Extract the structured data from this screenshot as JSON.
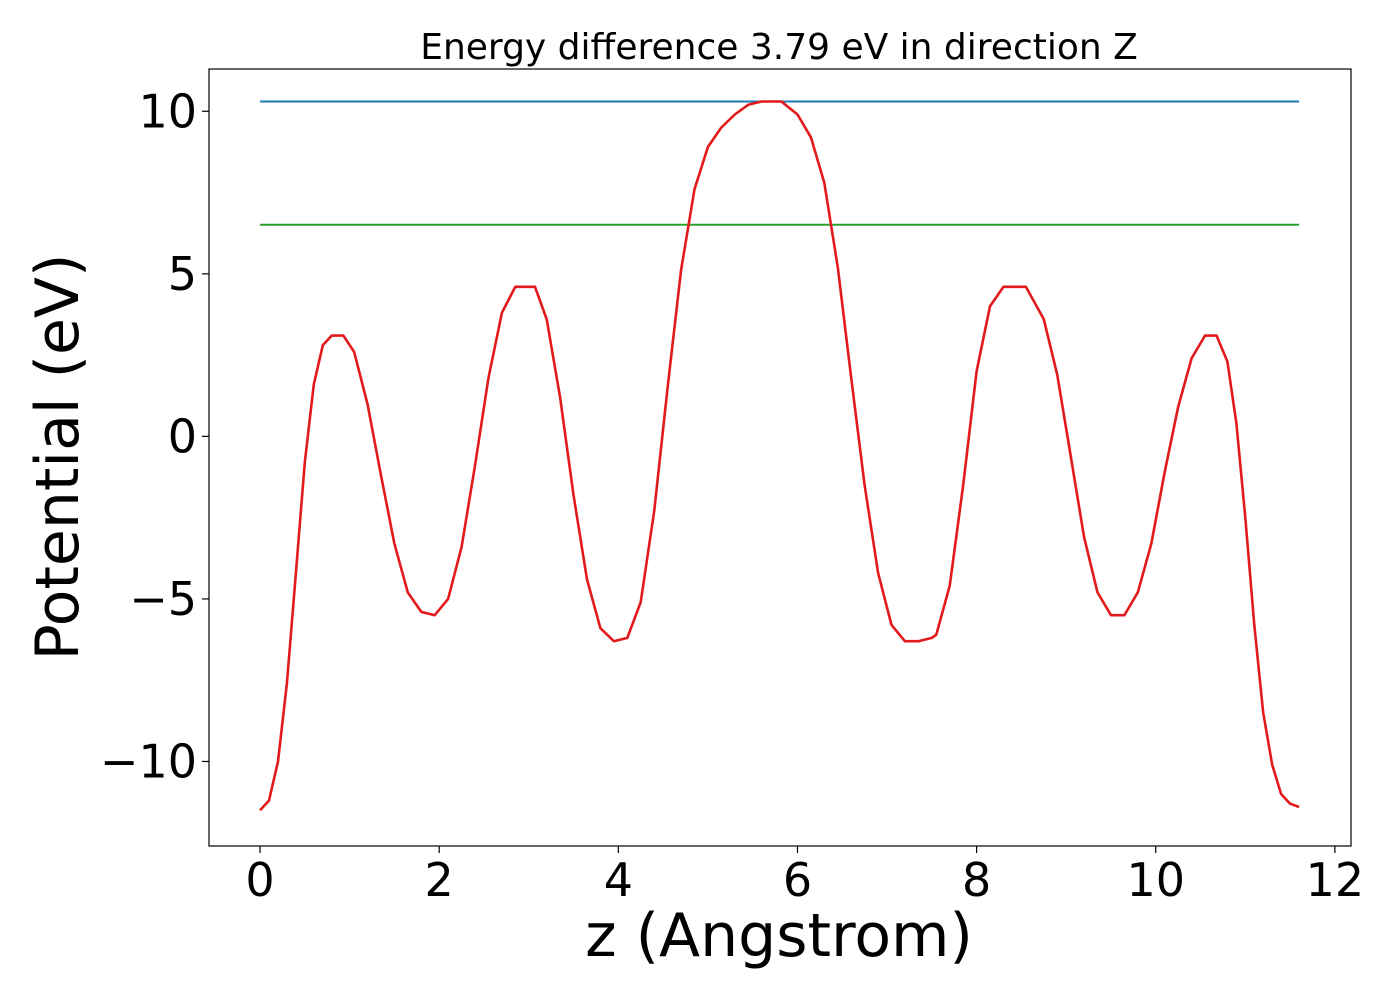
{
  "chart_data": {
    "type": "line",
    "title": "Energy difference 3.79 eV in direction Z",
    "xlabel": "z (Angstrom)",
    "ylabel": "Potential (eV)",
    "xlim": [
      -0.57,
      12.18
    ],
    "ylim": [
      -12.6,
      11.3
    ],
    "xticks": [
      0,
      2,
      4,
      6,
      8,
      10,
      12
    ],
    "xtick_labels": [
      "0",
      "2",
      "4",
      "6",
      "8",
      "10",
      "12"
    ],
    "yticks": [
      -10,
      -5,
      0,
      5,
      10
    ],
    "ytick_labels": [
      "−10",
      "−5",
      "0",
      "5",
      "10"
    ],
    "grid": false,
    "series": [
      {
        "color": "#1f77b4",
        "x": [
          0,
          11.6
        ],
        "y": [
          10.3,
          10.3
        ]
      },
      {
        "color": "#2ca02c",
        "x": [
          0,
          11.6
        ],
        "y": [
          6.51,
          6.51
        ]
      },
      {
        "color": "#e31a1c",
        "x": [
          0,
          0.1,
          0.2,
          0.3,
          0.4,
          0.5,
          0.6,
          0.7,
          0.8,
          0.93,
          1.05,
          1.2,
          1.35,
          1.5,
          1.65,
          1.8,
          1.95,
          2.1,
          2.25,
          2.4,
          2.55,
          2.7,
          2.85,
          3.07,
          3.2,
          3.35,
          3.5,
          3.65,
          3.8,
          3.95,
          4.1,
          4.25,
          4.4,
          4.55,
          4.7,
          4.85,
          5.0,
          5.15,
          5.3,
          5.45,
          5.6,
          5.82,
          6.0,
          6.15,
          6.3,
          6.45,
          6.6,
          6.75,
          6.9,
          7.05,
          7.2,
          7.35,
          7.5,
          7.55,
          7.7,
          7.85,
          8.0,
          8.15,
          8.3,
          8.55,
          8.75,
          8.9,
          9.05,
          9.2,
          9.35,
          9.5,
          9.65,
          9.8,
          9.95,
          10.1,
          10.25,
          10.4,
          10.55,
          10.68,
          10.8,
          10.9,
          11.0,
          11.1,
          11.2,
          11.3,
          11.4,
          11.5,
          11.6
        ],
        "y": [
          -11.5,
          -11.2,
          -10.0,
          -7.6,
          -4.2,
          -0.8,
          1.6,
          2.8,
          3.1,
          3.1,
          2.6,
          1.0,
          -1.2,
          -3.3,
          -4.8,
          -5.4,
          -5.5,
          -5.0,
          -3.4,
          -0.9,
          1.8,
          3.8,
          4.6,
          4.6,
          3.6,
          1.2,
          -1.8,
          -4.4,
          -5.9,
          -6.3,
          -6.2,
          -5.1,
          -2.3,
          1.5,
          5.1,
          7.6,
          8.9,
          9.5,
          9.9,
          10.2,
          10.3,
          10.3,
          9.9,
          9.2,
          7.8,
          5.2,
          1.8,
          -1.5,
          -4.2,
          -5.8,
          -6.3,
          -6.3,
          -6.2,
          -6.1,
          -4.6,
          -1.5,
          2.0,
          4.0,
          4.6,
          4.6,
          3.6,
          1.9,
          -0.6,
          -3.1,
          -4.8,
          -5.5,
          -5.5,
          -4.8,
          -3.3,
          -1.1,
          0.9,
          2.4,
          3.1,
          3.1,
          2.3,
          0.4,
          -2.5,
          -5.8,
          -8.5,
          -10.1,
          -11.0,
          -11.3,
          -11.4
        ]
      }
    ]
  }
}
